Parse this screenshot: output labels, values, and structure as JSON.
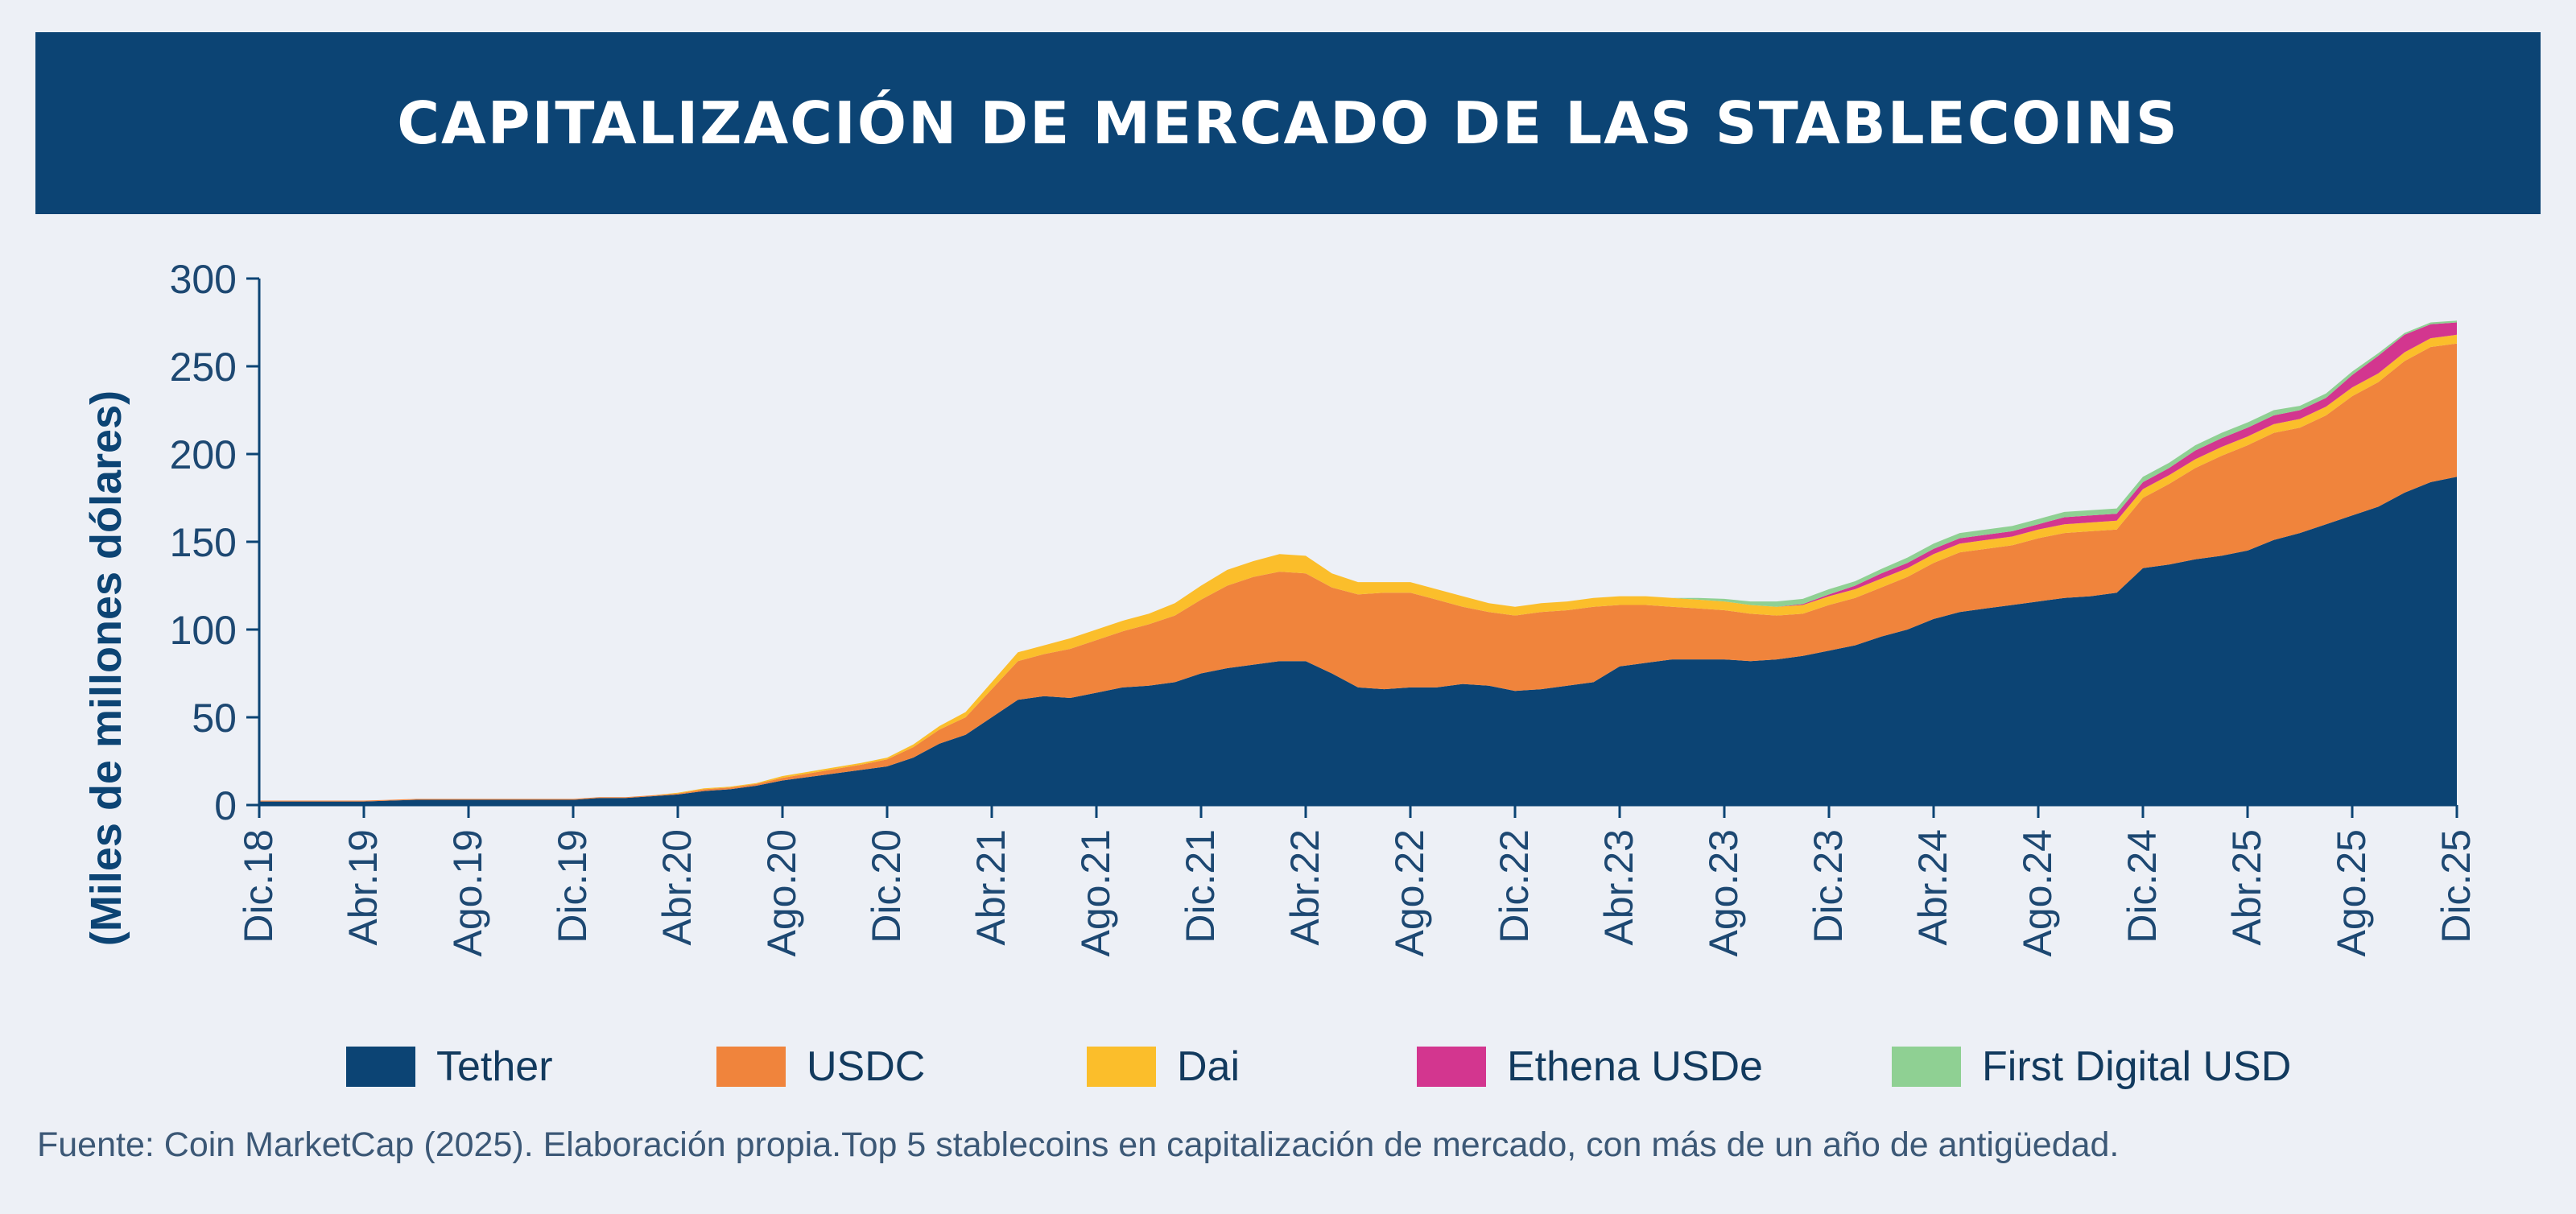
{
  "chart_data": {
    "type": "area",
    "stacked": true,
    "title": "CAPITALIZACIÓN DE MERCADO DE LAS STABLECOINS",
    "ylabel": "(Miles de millones dólares)",
    "xlabel": "",
    "ylim": [
      0,
      300
    ],
    "yticks": [
      0,
      50,
      100,
      150,
      200,
      250,
      300
    ],
    "grid": false,
    "legend_position": "bottom",
    "x": [
      "Dic.18",
      "Ene.19",
      "Feb.19",
      "Mar.19",
      "Abr.19",
      "May.19",
      "Jun.19",
      "Jul.19",
      "Ago.19",
      "Sep.19",
      "Oct.19",
      "Nov.19",
      "Dic.19",
      "Ene.20",
      "Feb.20",
      "Mar.20",
      "Abr.20",
      "May.20",
      "Jun.20",
      "Jul.20",
      "Ago.20",
      "Sep.20",
      "Oct.20",
      "Nov.20",
      "Dic.20",
      "Ene.21",
      "Feb.21",
      "Mar.21",
      "Abr.21",
      "May.21",
      "Jun.21",
      "Jul.21",
      "Ago.21",
      "Sep.21",
      "Oct.21",
      "Nov.21",
      "Dic.21",
      "Ene.22",
      "Feb.22",
      "Mar.22",
      "Abr.22",
      "May.22",
      "Jun.22",
      "Jul.22",
      "Ago.22",
      "Sep.22",
      "Oct.22",
      "Nov.22",
      "Dic.22",
      "Ene.23",
      "Feb.23",
      "Mar.23",
      "Abr.23",
      "May.23",
      "Jun.23",
      "Jul.23",
      "Ago.23",
      "Sep.23",
      "Oct.23",
      "Nov.23",
      "Dic.23",
      "Ene.24",
      "Feb.24",
      "Mar.24",
      "Abr.24",
      "May.24",
      "Jun.24",
      "Jul.24",
      "Ago.24",
      "Sep.24",
      "Oct.24",
      "Nov.24",
      "Dic.24",
      "Ene.25",
      "Feb.25",
      "Mar.25",
      "Abr.25",
      "May.25",
      "Jun.25",
      "Jul.25",
      "Ago.25",
      "Sep.25",
      "Oct.25",
      "Nov.25",
      "Dic.25"
    ],
    "xtick_labels": [
      "Dic.18",
      "Abr.19",
      "Ago.19",
      "Dic.19",
      "Abr.20",
      "Ago.20",
      "Dic.20",
      "Abr.21",
      "Ago.21",
      "Dic.21",
      "Abr.22",
      "Ago.22",
      "Dic.22",
      "Abr.23",
      "Ago.23",
      "Dic.23",
      "Abr.24",
      "Ago.24",
      "Dic.24",
      "Abr.25",
      "Ago.25",
      "Dic.25"
    ],
    "series": [
      {
        "name": "Tether",
        "color": "#0c4474",
        "values": [
          2,
          2,
          2,
          2,
          2,
          2.5,
          3,
          3,
          3,
          3,
          3,
          3,
          3,
          4,
          4,
          5,
          6,
          8,
          9,
          11,
          14,
          16,
          18,
          20,
          22,
          27,
          35,
          40,
          50,
          60,
          62,
          61,
          64,
          67,
          68,
          70,
          75,
          78,
          80,
          82,
          82,
          75,
          67,
          66,
          67,
          67,
          69,
          68,
          65,
          66,
          68,
          70,
          79,
          81,
          83,
          83,
          83,
          82,
          83,
          85,
          88,
          91,
          96,
          100,
          106,
          110,
          112,
          114,
          116,
          118,
          119,
          121,
          135,
          137,
          140,
          142,
          145,
          151,
          155,
          160,
          165,
          170,
          178,
          184,
          187
        ]
      },
      {
        "name": "USDC",
        "color": "#f0843c",
        "values": [
          0.5,
          0.5,
          0.5,
          0.5,
          0.5,
          0.5,
          0.5,
          0.5,
          0.5,
          0.5,
          0.5,
          0.5,
          0.5,
          0.5,
          0.5,
          0.5,
          0.5,
          1,
          1,
          1,
          1.5,
          2,
          2.5,
          3,
          4,
          6,
          8,
          10,
          16,
          22,
          24,
          28,
          30,
          32,
          35,
          38,
          42,
          47,
          50,
          51,
          50,
          49,
          53,
          55,
          54,
          50,
          44,
          42,
          43,
          44,
          43,
          43,
          35,
          33,
          30,
          29,
          28,
          27,
          25,
          24,
          26,
          27,
          28,
          30,
          32,
          34,
          34,
          34,
          36,
          37,
          37,
          36,
          40,
          46,
          52,
          57,
          60,
          61,
          60,
          62,
          68,
          71,
          75,
          77,
          76
        ]
      },
      {
        "name": "Dai",
        "color": "#fbbe2b",
        "values": [
          0,
          0,
          0,
          0,
          0,
          0,
          0,
          0,
          0,
          0,
          0,
          0,
          0,
          0,
          0,
          0,
          0.5,
          0.5,
          0.5,
          0.5,
          1,
          1,
          1,
          1,
          1,
          1.5,
          2,
          3,
          4,
          5,
          5,
          6,
          6,
          6,
          6,
          7,
          8,
          9,
          9,
          10,
          10,
          8,
          7,
          6,
          6,
          6,
          6,
          5,
          5,
          5,
          5,
          5,
          5,
          5,
          5,
          5,
          5,
          5,
          5,
          5,
          5,
          5,
          5,
          5,
          5,
          5,
          5,
          5,
          5,
          5,
          5,
          5,
          5,
          5,
          5,
          5,
          5,
          5,
          5,
          5,
          5,
          5,
          5,
          5,
          5
        ]
      },
      {
        "name": "Ethena USDe",
        "color": "#d3368f",
        "values": [
          0,
          0,
          0,
          0,
          0,
          0,
          0,
          0,
          0,
          0,
          0,
          0,
          0,
          0,
          0,
          0,
          0,
          0,
          0,
          0,
          0,
          0,
          0,
          0,
          0,
          0,
          0,
          0,
          0,
          0,
          0,
          0,
          0,
          0,
          0,
          0,
          0,
          0,
          0,
          0,
          0,
          0,
          0,
          0,
          0,
          0,
          0,
          0,
          0,
          0,
          0,
          0,
          0,
          0,
          0,
          0,
          0,
          0,
          0,
          0.5,
          1,
          2,
          3,
          3,
          3,
          3,
          3,
          3,
          3,
          4,
          4,
          4,
          4,
          4,
          5,
          5,
          5,
          5,
          5,
          5,
          7,
          10,
          10,
          8,
          7
        ]
      },
      {
        "name": "First Digital USD",
        "color": "#8fd093",
        "values": [
          0,
          0,
          0,
          0,
          0,
          0,
          0,
          0,
          0,
          0,
          0,
          0,
          0,
          0,
          0,
          0,
          0,
          0,
          0,
          0,
          0,
          0,
          0,
          0,
          0,
          0,
          0,
          0,
          0,
          0,
          0,
          0,
          0,
          0,
          0,
          0,
          0,
          0,
          0,
          0,
          0,
          0,
          0,
          0,
          0,
          0,
          0,
          0,
          0,
          0,
          0,
          0,
          0,
          0,
          0,
          1,
          1.5,
          2,
          3,
          3,
          3,
          2.5,
          2.5,
          3,
          3,
          3,
          3,
          3,
          3,
          3,
          3,
          3,
          3,
          3,
          3,
          3,
          3,
          3,
          2.5,
          2.5,
          2,
          1.5,
          1,
          1,
          1
        ]
      }
    ],
    "source": "Fuente: Coin MarketCap (2025). Elaboración propia.Top 5 stablecoins en capitalización de mercado, con más de un año de antigüedad."
  }
}
